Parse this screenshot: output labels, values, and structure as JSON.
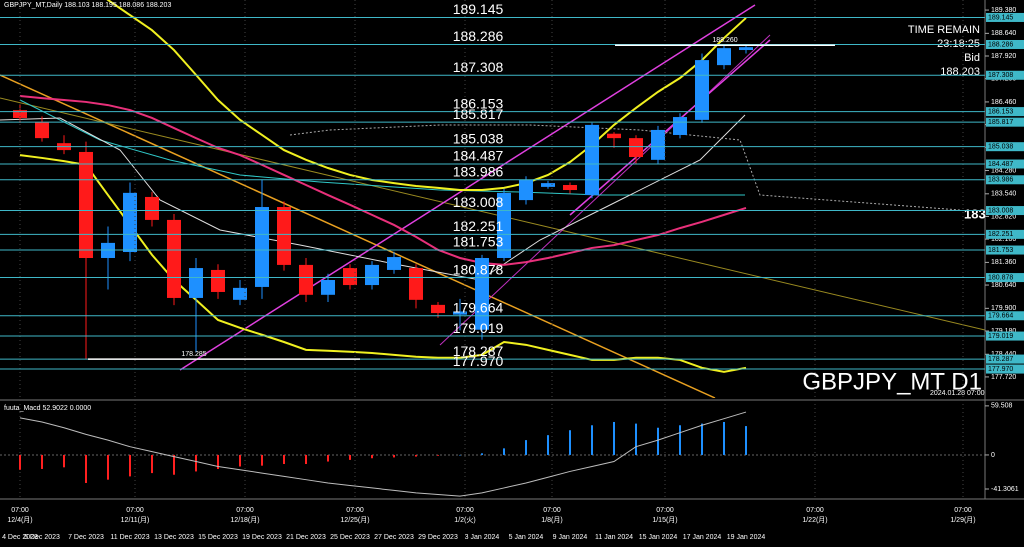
{
  "header": {
    "symbol_info": "GBPJPY_MT,Daily  188.103 188.195 188.086 188.203",
    "time_remain_label": "TIME REMAIN",
    "time_remain": "23:18:25",
    "bid_label": "Bid",
    "bid": 188.203,
    "watermark": "GBPJPY_MT D1",
    "side_label": "183",
    "timestamp": "2024.01.28 07:00"
  },
  "chart_data": [
    {
      "type": "candlestick",
      "categories": [
        "4 Dec 2023",
        "5 Dec 2023",
        null,
        "7 Dec 2023",
        null,
        "11 Dec 2023",
        null,
        "13 Dec 2023",
        null,
        "15 Dec 2023",
        null,
        "19 Dec 2023",
        null,
        "21 Dec 2023",
        null,
        "25 Dec 2023",
        null,
        "27 Dec 2023",
        null,
        "29 Dec 2023",
        null,
        "3 Jan 2024",
        null,
        "5 Jan 2024",
        null,
        "9 Jan 2024",
        null,
        "11 Jan 2024",
        null,
        "15 Jan 2024",
        null,
        "17 Jan 2024",
        null,
        "19 Jan 2024"
      ],
      "open": [
        186.2,
        185.82,
        185.15,
        184.87,
        181.5,
        181.69,
        183.44,
        182.71,
        180.23,
        181.12,
        180.17,
        180.58,
        183.12,
        181.28,
        180.33,
        181.18,
        180.64,
        181.12,
        181.18,
        180.01,
        179.7,
        179.22,
        181.5,
        183.34,
        183.76,
        183.82,
        183.5,
        185.45,
        185.31,
        184.62,
        185.41,
        185.89,
        187.63,
        188.11
      ],
      "high": [
        186.4,
        186.0,
        185.4,
        185.2,
        182.5,
        183.9,
        183.6,
        182.9,
        181.5,
        181.3,
        180.8,
        184.0,
        183.3,
        181.5,
        181.0,
        181.3,
        181.4,
        181.7,
        181.3,
        180.1,
        180.2,
        181.6,
        183.7,
        184.1,
        183.95,
        183.9,
        185.8,
        185.5,
        185.4,
        185.7,
        186.1,
        188.0,
        188.26,
        188.29
      ],
      "low": [
        185.8,
        185.2,
        184.8,
        178.29,
        180.5,
        181.4,
        182.5,
        180.0,
        178.5,
        180.2,
        180.0,
        180.2,
        181.1,
        180.1,
        180.1,
        180.5,
        180.5,
        181.0,
        179.9,
        179.6,
        179.2,
        178.9,
        181.4,
        183.2,
        183.7,
        183.55,
        183.4,
        185.0,
        184.5,
        184.5,
        185.3,
        185.8,
        187.5,
        188.0
      ],
      "close": [
        185.95,
        185.31,
        184.93,
        181.5,
        181.98,
        183.57,
        182.71,
        180.23,
        181.18,
        180.42,
        180.55,
        183.12,
        181.28,
        180.33,
        180.8,
        180.64,
        181.28,
        181.53,
        180.17,
        179.75,
        179.8,
        181.5,
        183.57,
        183.98,
        183.88,
        183.66,
        185.73,
        185.31,
        184.71,
        185.57,
        185.98,
        187.79,
        188.17,
        188.2
      ],
      "up_color": "#1e90ff",
      "down_color": "#ff1a1a",
      "x_time_labels": [
        [
          "07:00",
          "12/4(月)"
        ],
        [
          "07:00",
          "12/11(月)"
        ],
        [
          "07:00",
          "12/18(月)"
        ],
        [
          "07:00",
          "12/25(月)"
        ],
        [
          "07:00",
          "1/2(火)"
        ],
        [
          "07:00",
          "1/8(月)"
        ],
        [
          "07:00",
          "1/15(月)"
        ],
        [
          "07:00",
          "1/22(月)"
        ],
        [
          "07:00",
          "1/29(月)"
        ]
      ],
      "ylim": [
        177.05,
        189.7
      ],
      "yticks": [
        {
          "value": 189.38,
          "label": "189.380"
        },
        {
          "value": 188.64,
          "label": "188.640"
        },
        {
          "value": 187.92,
          "label": "187.920"
        },
        {
          "value": 187.2,
          "label": "187.200"
        },
        {
          "value": 186.46,
          "label": "186.460"
        },
        {
          "value": 185.74,
          "label": "185.740"
        },
        {
          "value": 185.02,
          "label": "185.020"
        },
        {
          "value": 184.28,
          "label": "184.280"
        },
        {
          "value": 183.54,
          "label": "183.540"
        },
        {
          "value": 182.82,
          "label": "182.820"
        },
        {
          "value": 182.1,
          "label": "182.100"
        },
        {
          "value": 181.36,
          "label": "181.360"
        },
        {
          "value": 180.64,
          "label": "180.640"
        },
        {
          "value": 179.9,
          "label": "179.900"
        },
        {
          "value": 179.18,
          "label": "179.180"
        },
        {
          "value": 178.44,
          "label": "178.440"
        },
        {
          "value": 177.72,
          "label": "177.720"
        }
      ],
      "levels": [
        189.145,
        188.286,
        187.308,
        186.153,
        185.817,
        185.038,
        184.487,
        183.986,
        183.008,
        182.251,
        181.753,
        180.878,
        179.664,
        179.019,
        178.287,
        {
          "value": 177.97,
          "label": "177.970"
        }
      ],
      "level_color": "#3fb8c8",
      "annotations": [
        {
          "value": {
            "value": 188.26,
            "label": "188.260"
          }
        },
        {
          "value": 178.285
        }
      ],
      "indicators": [
        {
          "color": "#e8307a",
          "values": [
            186.65,
            186.58,
            186.52,
            186.46,
            186.36,
            186.2,
            185.95,
            185.63,
            185.31,
            185.0,
            184.77,
            184.46,
            184.14,
            183.82,
            183.5,
            183.19,
            182.87,
            182.55,
            182.17,
            181.76,
            181.5,
            181.34,
            181.28,
            181.37,
            181.5,
            181.66,
            181.82,
            181.91,
            182.07,
            182.23,
            182.45,
            182.65,
            182.87,
            183.09
          ]
        },
        {
          "color": "#f0f020",
          "values": [
            192.24,
            191.6,
            190.97,
            190.33,
            189.7,
            189.22,
            188.74,
            188.11,
            187.32,
            186.52,
            185.89,
            185.41,
            184.93,
            184.62,
            184.36,
            184.14,
            183.98,
            183.88,
            183.79,
            183.73,
            183.66,
            183.66,
            183.73,
            183.88,
            184.14,
            184.55,
            185.09,
            185.73,
            186.27,
            186.78,
            187.22,
            187.79,
            188.49,
            189.13
          ]
        },
        {
          "color": "#f0f020",
          "values": [
            184.77,
            184.68,
            184.58,
            184.46,
            183.5,
            182.55,
            181.6,
            180.8,
            180.17,
            179.53,
            179.28,
            179.06,
            178.83,
            178.58,
            178.55,
            178.52,
            178.48,
            178.42,
            178.36,
            178.33,
            178.33,
            178.42,
            178.83,
            178.74,
            178.58,
            178.42,
            178.26,
            178.26,
            178.33,
            178.33,
            178.26,
            178.01,
            177.88,
            178.01
          ]
        }
      ]
    },
    {
      "type": "macd",
      "label": "fuuta_Macd 52.9022 0.0000",
      "ylim": [
        -51,
        63
      ],
      "yticks": [
        59.508,
        0,
        -41.3061
      ],
      "up_color": "#1e90ff",
      "down_color": "#ff2020",
      "signal_color": "#bdbdbd",
      "values": [
        -18,
        -17,
        -15,
        -34,
        -30,
        -26,
        -22,
        -24,
        -20,
        -17,
        -14,
        -13,
        -11,
        -11,
        -8,
        -6,
        -4,
        -3,
        -2,
        -1,
        0,
        2,
        8,
        18,
        24,
        30,
        36,
        40,
        38,
        33,
        36,
        38,
        40,
        35
      ],
      "signal": [
        45,
        40,
        33,
        25,
        18,
        10,
        4,
        -2,
        -8,
        -14,
        -18,
        -22,
        -26,
        -30,
        -34,
        -37,
        -40,
        -43,
        -46,
        -48,
        -50,
        -46,
        -40,
        -34,
        -27,
        -20,
        -14,
        -8,
        10,
        18,
        27,
        36,
        44,
        52
      ]
    }
  ]
}
